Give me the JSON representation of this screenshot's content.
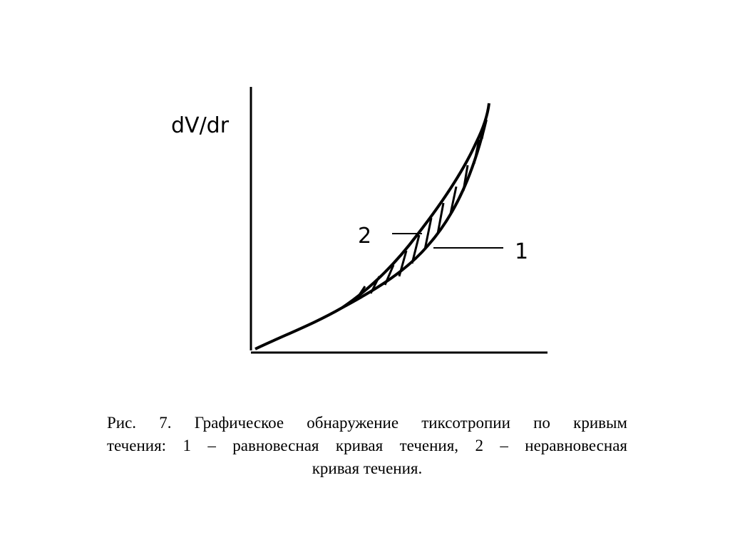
{
  "axis_label": "dV/dr",
  "curve_labels": [
    "2",
    "1"
  ],
  "caption": [
    "Рис. 7. Графическое обнаружение тиксотропии по кривым",
    "течения: 1 – равновесная кривая течения, 2 – неравновесная",
    "кривая течения."
  ]
}
